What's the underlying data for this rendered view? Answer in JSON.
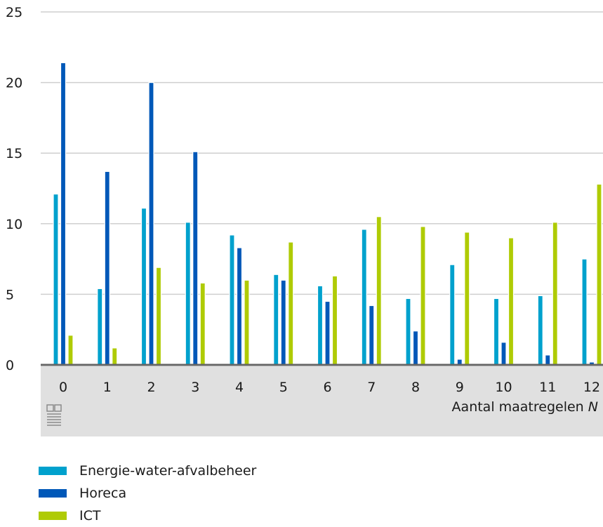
{
  "chart_data": {
    "type": "bar",
    "categories": [
      "0",
      "1",
      "2",
      "3",
      "4",
      "5",
      "6",
      "7",
      "8",
      "9",
      "10",
      "11",
      "12"
    ],
    "series": [
      {
        "name": "Energie-water-afvalbeheer",
        "color": "#00a1cd",
        "values": [
          12.1,
          5.4,
          11.1,
          10.1,
          9.2,
          6.4,
          5.6,
          9.6,
          4.7,
          7.1,
          4.7,
          4.9,
          7.5
        ]
      },
      {
        "name": "Horeca",
        "color": "#0058b8",
        "values": [
          21.4,
          13.7,
          20.0,
          15.1,
          8.3,
          6.0,
          4.5,
          4.2,
          2.4,
          0.4,
          1.6,
          0.7,
          0.2
        ]
      },
      {
        "name": "ICT",
        "color": "#afcb05",
        "values": [
          2.1,
          1.2,
          6.9,
          5.8,
          6.0,
          8.7,
          6.3,
          10.5,
          9.8,
          9.4,
          9.0,
          10.1,
          12.8
        ]
      }
    ],
    "xlabel": "Aantal maatregelen",
    "xlabel_italic": "N",
    "ylabel": "",
    "ylim": [
      0,
      25
    ],
    "yticks": [
      "0",
      "5",
      "10",
      "15",
      "20",
      "25"
    ],
    "grid": true,
    "legend_position": "bottom-left"
  },
  "footer": {
    "logo_icon": "cbs-logo-icon"
  }
}
